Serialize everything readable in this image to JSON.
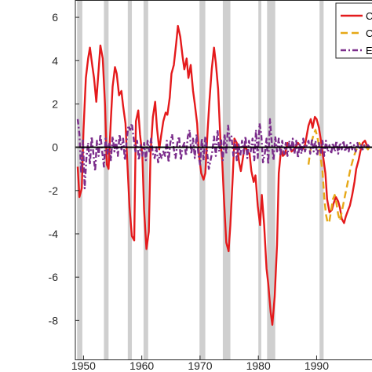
{
  "chart_data": {
    "type": "line",
    "xlim": [
      1948.6,
      1999.5
    ],
    "ylim": [
      -9.8,
      6.8
    ],
    "yticks": [
      6,
      4,
      2,
      0,
      -2,
      -4,
      -6,
      -8
    ],
    "ytick_labels": [
      "6",
      "4",
      "2",
      "0",
      "-2",
      "-4",
      "-6",
      "-8"
    ],
    "xticks": [
      1950,
      1960,
      1970,
      1980,
      1990
    ],
    "xtick_labels": [
      "1950",
      "1960",
      "1970",
      "1980",
      "1990"
    ],
    "zero_line": 0,
    "recessions": [
      [
        1948.9,
        1949.8
      ],
      [
        1953.5,
        1954.3
      ],
      [
        1957.6,
        1958.3
      ],
      [
        1960.3,
        1961.1
      ],
      [
        1969.9,
        1970.9
      ],
      [
        1973.9,
        1975.2
      ],
      [
        1980.0,
        1980.5
      ],
      [
        1981.5,
        1982.9
      ],
      [
        1990.5,
        1991.2
      ]
    ],
    "series": [
      {
        "color": "#e41a1c",
        "style": "solid",
        "x": [
          1949.0,
          1949.3,
          1949.7,
          1950.0,
          1950.4,
          1950.8,
          1951.1,
          1951.5,
          1951.8,
          1952.2,
          1952.6,
          1952.9,
          1953.3,
          1953.7,
          1954.0,
          1954.3,
          1954.7,
          1955.0,
          1955.4,
          1955.7,
          1956.1,
          1956.5,
          1956.8,
          1957.2,
          1957.5,
          1957.9,
          1958.3,
          1958.7,
          1959.0,
          1959.4,
          1959.7,
          1960.1,
          1960.4,
          1960.8,
          1961.2,
          1961.5,
          1961.9,
          1962.3,
          1962.6,
          1963.0,
          1963.3,
          1963.7,
          1964.1,
          1964.4,
          1964.8,
          1965.1,
          1965.5,
          1965.9,
          1966.2,
          1966.6,
          1967.0,
          1967.3,
          1967.7,
          1968.0,
          1968.4,
          1968.8,
          1969.1,
          1969.5,
          1969.8,
          1970.2,
          1970.6,
          1970.9,
          1971.3,
          1971.6,
          1972.0,
          1972.4,
          1972.7,
          1973.1,
          1973.5,
          1973.8,
          1974.1,
          1974.5,
          1974.9,
          1975.2,
          1975.6,
          1975.9,
          1976.3,
          1976.7,
          1977.0,
          1977.4,
          1977.7,
          1978.1,
          1978.5,
          1978.8,
          1979.2,
          1979.5,
          1979.9,
          1980.3,
          1980.6,
          1981.0,
          1981.4,
          1981.7,
          1982.1,
          1982.4,
          1982.8,
          1983.2,
          1983.5,
          1983.9,
          1984.2,
          1984.6,
          1985.0,
          1985.3,
          1985.7,
          1986.1,
          1986.4,
          1986.8,
          1987.1,
          1987.5,
          1987.9,
          1988.2,
          1988.6,
          1989.0,
          1989.3,
          1989.7,
          1990.0,
          1990.4,
          1990.8,
          1991.1,
          1991.5,
          1991.8,
          1992.2,
          1992.6,
          1992.9,
          1993.3,
          1993.7,
          1994.0,
          1994.3,
          1994.7,
          1995.0,
          1995.4,
          1995.7,
          1996.1,
          1996.5,
          1996.8,
          1997.2,
          1997.5,
          1997.9,
          1998.3,
          1998.6,
          1999.0
        ],
        "y": [
          -0.9,
          -2.3,
          -1.9,
          0.8,
          3.2,
          4.1,
          4.6,
          3.8,
          3.2,
          2.1,
          3.6,
          4.7,
          4.1,
          1.9,
          -0.8,
          -1.0,
          1.3,
          2.8,
          3.7,
          3.4,
          2.4,
          2.6,
          1.9,
          1.1,
          -0.6,
          -2.8,
          -4.1,
          -4.3,
          1.2,
          1.7,
          0.6,
          -0.4,
          -2.9,
          -4.7,
          -3.9,
          -0.3,
          1.4,
          2.1,
          0.9,
          -0.1,
          0.5,
          1.2,
          1.6,
          1.5,
          2.3,
          3.4,
          3.8,
          4.8,
          5.6,
          5.1,
          4.2,
          3.6,
          4.1,
          3.2,
          3.8,
          2.6,
          2.0,
          1.1,
          -0.3,
          -1.2,
          -1.5,
          -1.2,
          0.8,
          2.1,
          3.6,
          4.6,
          3.9,
          2.7,
          0.3,
          -0.6,
          -2.4,
          -4.4,
          -4.8,
          -3.6,
          -1.4,
          0.4,
          0.2,
          -0.7,
          -1.1,
          -0.4,
          0.1,
          -0.2,
          -0.3,
          -1.1,
          -1.6,
          -1.3,
          -2.7,
          -3.6,
          -2.2,
          -3.6,
          -5.6,
          -6.3,
          -7.6,
          -8.2,
          -6.9,
          -4.5,
          -1.2,
          -0.1,
          -0.4,
          -0.3,
          0.2,
          0.1,
          -0.2,
          -0.1,
          0.0,
          0.2,
          0.1,
          -0.1,
          0.0,
          0.4,
          1.0,
          1.3,
          0.9,
          1.4,
          1.3,
          0.9,
          0.2,
          -0.4,
          -1.2,
          -2.4,
          -3.0,
          -2.9,
          -2.6,
          -2.3,
          -2.5,
          -2.8,
          -3.3,
          -3.5,
          -3.2,
          -2.9,
          -2.7,
          -2.2,
          -1.6,
          -1.0,
          -0.6,
          -0.2,
          0.2,
          0.3,
          0.1,
          0.0
        ]
      },
      {
        "color": "#e6a817",
        "style": "dashed",
        "x": [
          1988.6,
          1988.9,
          1989.2,
          1989.5,
          1989.8,
          1990.1,
          1990.4,
          1990.7,
          1991.0,
          1991.3,
          1991.6,
          1991.9,
          1992.2,
          1992.5,
          1992.8,
          1993.1,
          1993.4,
          1993.7,
          1994.0,
          1994.3,
          1994.6,
          1994.9,
          1995.2,
          1995.5,
          1995.8,
          1996.1,
          1996.4,
          1996.7,
          1997.0,
          1997.3,
          1997.6,
          1997.9,
          1998.2,
          1998.5,
          1998.8,
          1999.1
        ],
        "y": [
          -0.8,
          -0.2,
          0.3,
          0.6,
          0.8,
          0.5,
          0.1,
          -0.5,
          -1.1,
          -2.3,
          -3.1,
          -3.5,
          -3.4,
          -2.9,
          -2.4,
          -2.2,
          -2.6,
          -3.1,
          -3.4,
          -3.0,
          -2.6,
          -2.2,
          -1.8,
          -1.4,
          -1.0,
          -0.7,
          -0.4,
          -0.2,
          0.0,
          0.2,
          0.1,
          0.0,
          0.1,
          0.0,
          -0.1,
          0.0
        ]
      },
      {
        "color": "#7b2d8b",
        "style": "dashdot",
        "x": [
          1949.0,
          1949.3,
          1949.6,
          1949.9,
          1950.2,
          1950.5,
          1950.8,
          1951.1,
          1951.4,
          1951.7,
          1952.0,
          1952.3,
          1952.6,
          1952.9,
          1953.2,
          1953.5,
          1953.8,
          1954.1,
          1954.4,
          1954.7,
          1955.0,
          1955.3,
          1955.6,
          1955.9,
          1956.2,
          1956.5,
          1956.8,
          1957.1,
          1957.4,
          1957.7,
          1958.0,
          1958.3,
          1958.6,
          1958.9,
          1959.2,
          1959.5,
          1959.8,
          1960.1,
          1960.4,
          1960.7,
          1961.0,
          1961.3,
          1961.6,
          1961.9,
          1962.2,
          1962.5,
          1962.8,
          1963.1,
          1963.4,
          1963.7,
          1964.0,
          1964.3,
          1964.6,
          1964.9,
          1965.2,
          1965.5,
          1965.8,
          1966.1,
          1966.4,
          1966.7,
          1967.0,
          1967.3,
          1967.6,
          1967.9,
          1968.2,
          1968.5,
          1968.8,
          1969.1,
          1969.4,
          1969.7,
          1970.0,
          1970.3,
          1970.6,
          1970.9,
          1971.2,
          1971.5,
          1971.8,
          1972.1,
          1972.4,
          1972.7,
          1973.0,
          1973.3,
          1973.6,
          1973.9,
          1974.2,
          1974.5,
          1974.8,
          1975.1,
          1975.4,
          1975.7,
          1976.0,
          1976.3,
          1976.6,
          1976.9,
          1977.2,
          1977.5,
          1977.8,
          1978.1,
          1978.4,
          1978.7,
          1979.0,
          1979.3,
          1979.6,
          1979.9,
          1980.2,
          1980.5,
          1980.8,
          1981.1,
          1981.4,
          1981.7,
          1982.0,
          1982.3,
          1982.6,
          1982.9,
          1983.2,
          1983.5,
          1983.8,
          1984.1,
          1984.4,
          1984.7,
          1985.0,
          1985.3,
          1985.6,
          1985.9,
          1986.2,
          1986.5,
          1986.8,
          1987.1,
          1987.4,
          1987.7,
          1988.0,
          1988.3,
          1988.6,
          1988.9,
          1989.2,
          1989.5,
          1989.8,
          1990.1,
          1990.4,
          1990.7,
          1991.0,
          1991.3,
          1991.6,
          1991.9,
          1992.2,
          1992.5,
          1992.8,
          1993.1,
          1993.4,
          1993.7,
          1994.0,
          1994.3,
          1994.6,
          1994.9,
          1995.2,
          1995.5,
          1995.8,
          1996.1,
          1996.4,
          1996.7,
          1997.0,
          1997.3,
          1997.6,
          1997.9,
          1998.2,
          1998.5,
          1998.8,
          1999.1
        ],
        "y": [
          1.3,
          0.6,
          -1.2,
          0.4,
          -1.9,
          -0.5,
          0.2,
          -0.8,
          0.5,
          -0.3,
          -1.1,
          0.3,
          -0.4,
          0.6,
          -0.2,
          -0.9,
          0.4,
          -0.3,
          0.2,
          -0.6,
          0.5,
          -0.2,
          0.3,
          -0.4,
          0.6,
          -0.1,
          0.4,
          -0.6,
          0.3,
          1.0,
          0.8,
          1.1,
          0.4,
          -0.2,
          0.3,
          -0.6,
          0.1,
          -0.4,
          0.2,
          -0.6,
          0.3,
          -0.2,
          0.4,
          -0.3,
          -0.5,
          0.0,
          -0.7,
          -0.3,
          -0.5,
          -0.2,
          -0.4,
          0.3,
          -0.7,
          0.2,
          0.6,
          -0.1,
          -0.5,
          0.2,
          0.5,
          -0.6,
          0.0,
          0.2,
          -0.4,
          0.5,
          0.8,
          -0.3,
          0.4,
          -0.5,
          0.6,
          -0.3,
          -0.8,
          0.4,
          -0.6,
          0.5,
          -0.2,
          -1.0,
          -0.6,
          -0.2,
          0.5,
          -0.4,
          0.8,
          -0.2,
          0.4,
          -0.6,
          0.6,
          -0.3,
          1.0,
          0.3,
          0.5,
          -0.4,
          0.3,
          -0.6,
          0.2,
          -0.4,
          0.3,
          -0.3,
          0.5,
          -0.5,
          0.3,
          -0.2,
          0.4,
          -0.6,
          0.8,
          -0.5,
          1.1,
          0.6,
          -0.7,
          -0.3,
          0.4,
          -0.8,
          1.3,
          0.2,
          -0.6,
          0.5,
          -0.2,
          0.4,
          -0.4,
          0.3,
          -0.3,
          0.2,
          -0.4,
          0.3,
          -0.2,
          0.4,
          -0.3,
          0.3,
          -0.5,
          0.2,
          -0.3,
          0.4,
          -0.2,
          0.1,
          0.3,
          -0.3,
          0.4,
          -0.2,
          0.3,
          -0.4,
          0.2,
          -0.3,
          0.3,
          -0.4,
          0.3,
          -0.2,
          0.1,
          -0.3,
          0.2,
          -0.2,
          0.3,
          -0.3,
          0.2,
          -0.1,
          0.3,
          -0.2,
          0.1,
          -0.2,
          0.2,
          -0.1,
          0.1,
          -0.2,
          0.2,
          -0.1,
          0.1,
          -0.1,
          0.1,
          0.0,
          0.1,
          0.0
        ]
      }
    ],
    "legend": {
      "placement": "top-right",
      "labels": [
        "C",
        "C",
        "E"
      ]
    }
  }
}
